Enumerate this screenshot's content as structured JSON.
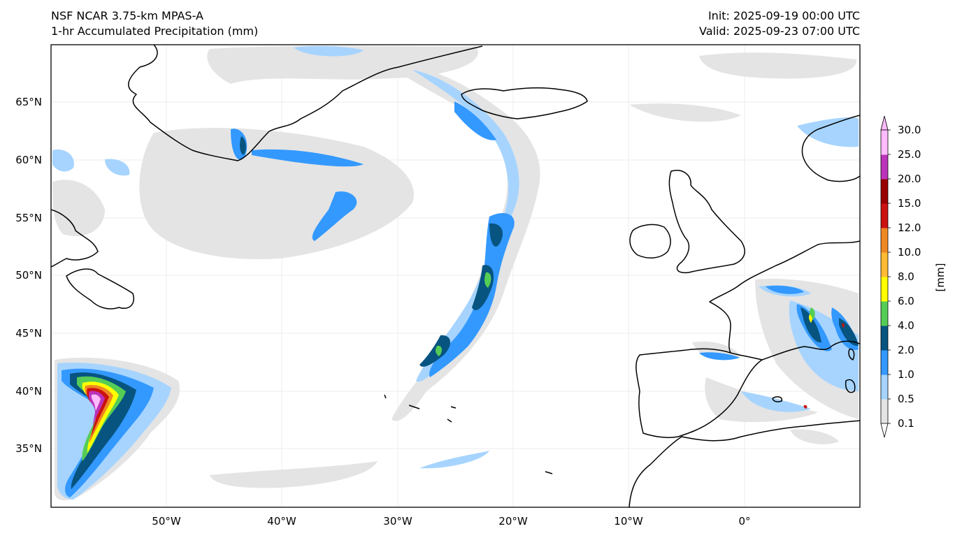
{
  "header": {
    "model": "NSF NCAR 3.75-km MPAS-A",
    "field": "1-hr Accumulated Precipitation (mm)",
    "init": "Init: 2025-09-19 00:00 UTC",
    "valid": "Valid: 2025-09-23 07:00 UTC"
  },
  "map": {
    "lat_labels": [
      "65°N",
      "60°N",
      "55°N",
      "50°N",
      "45°N",
      "40°N",
      "35°N"
    ],
    "lon_labels": [
      "50°W",
      "40°W",
      "30°W",
      "20°W",
      "10°W",
      "0°"
    ]
  },
  "colorbar": {
    "unit_label": "[mm]",
    "levels": [
      "0.1",
      "0.5",
      "1.0",
      "2.0",
      "4.0",
      "6.0",
      "8.0",
      "10.0",
      "12.0",
      "15.0",
      "20.0",
      "25.0",
      "30.0"
    ],
    "colors": [
      "#e4e4e4",
      "#a6d4ff",
      "#3399ff",
      "#075480",
      "#55cc55",
      "#ffff00",
      "#ffbb33",
      "#ee8822",
      "#cc1111",
      "#990000",
      "#bb33bb",
      "#ffbbff"
    ]
  }
}
